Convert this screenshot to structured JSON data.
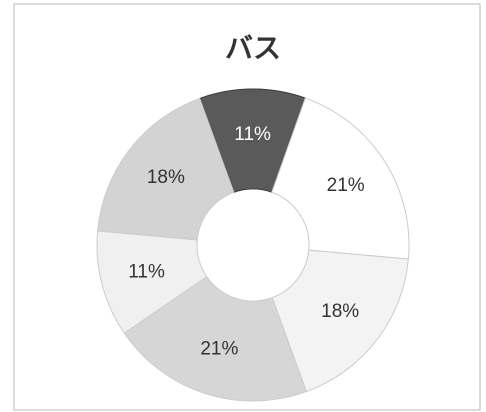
{
  "chart_data": {
    "type": "donut",
    "title": "バス",
    "values": [
      11,
      21,
      18,
      21,
      11,
      18
    ],
    "value_labels": [
      "11%",
      "21%",
      "18%",
      "21%",
      "11%",
      "18%"
    ],
    "colors": [
      "#5a5a5a",
      "#ffffff",
      "#f3f3f3",
      "#d6d6d6",
      "#f0f0f0",
      "#d3d3d3"
    ]
  }
}
